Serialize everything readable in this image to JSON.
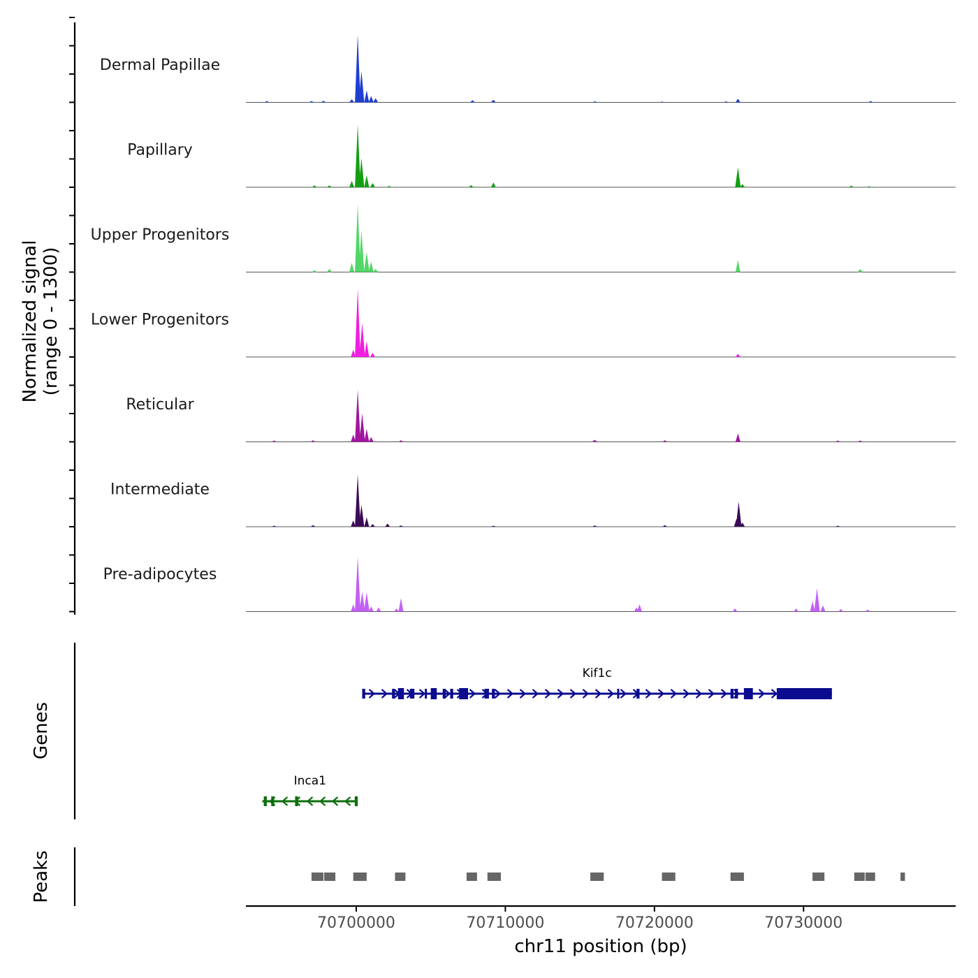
{
  "chart_data": {
    "type": "area",
    "title": "",
    "ylabel": "Normalized signal",
    "ylabel_range": "(range 0 - 1300)",
    "yrange": [
      0,
      1300
    ],
    "xlabel": "chr11 position (bp)",
    "xlim": [
      70692600,
      70740200
    ],
    "xticks": [
      {
        "value": 70700000,
        "label": "70700000"
      },
      {
        "value": 70710000,
        "label": "70710000"
      },
      {
        "value": 70720000,
        "label": "70720000"
      },
      {
        "value": 70730000,
        "label": "70730000"
      }
    ],
    "tracks": [
      {
        "name": "Dermal Papillae",
        "color": "#1f3fd1",
        "peaks": [
          [
            70694000,
            25
          ],
          [
            70697000,
            25
          ],
          [
            70697800,
            30
          ],
          [
            70699700,
            60
          ],
          [
            70700100,
            1300
          ],
          [
            70700350,
            600
          ],
          [
            70700700,
            230
          ],
          [
            70701000,
            120
          ],
          [
            70701300,
            80
          ],
          [
            70707800,
            40
          ],
          [
            70709200,
            50
          ],
          [
            70716000,
            20
          ],
          [
            70720500,
            15
          ],
          [
            70724800,
            20
          ],
          [
            70725600,
            70
          ],
          [
            70734500,
            25
          ]
        ]
      },
      {
        "name": "Papillary",
        "color": "#149e14",
        "peaks": [
          [
            70697200,
            35
          ],
          [
            70698200,
            35
          ],
          [
            70699700,
            120
          ],
          [
            70700100,
            1200
          ],
          [
            70700350,
            560
          ],
          [
            70700700,
            230
          ],
          [
            70701100,
            80
          ],
          [
            70702200,
            25
          ],
          [
            70707700,
            40
          ],
          [
            70709200,
            90
          ],
          [
            70725600,
            380
          ],
          [
            70725900,
            60
          ],
          [
            70733200,
            30
          ],
          [
            70734400,
            20
          ]
        ]
      },
      {
        "name": "Upper Progenitors",
        "color": "#52d667",
        "peaks": [
          [
            70697200,
            35
          ],
          [
            70698200,
            60
          ],
          [
            70699700,
            180
          ],
          [
            70700100,
            1300
          ],
          [
            70700350,
            800
          ],
          [
            70700700,
            380
          ],
          [
            70701000,
            200
          ],
          [
            70701300,
            60
          ],
          [
            70725600,
            230
          ],
          [
            70733800,
            60
          ]
        ]
      },
      {
        "name": "Lower Progenitors",
        "color": "#f01ee0",
        "peaks": [
          [
            70699800,
            140
          ],
          [
            70700100,
            1300
          ],
          [
            70700400,
            650
          ],
          [
            70700700,
            300
          ],
          [
            70701100,
            80
          ],
          [
            70725600,
            60
          ]
        ]
      },
      {
        "name": "Reticular",
        "color": "#a0169e",
        "peaks": [
          [
            70694500,
            25
          ],
          [
            70697100,
            30
          ],
          [
            70699800,
            140
          ],
          [
            70700100,
            1000
          ],
          [
            70700400,
            550
          ],
          [
            70700700,
            250
          ],
          [
            70701000,
            90
          ],
          [
            70703000,
            30
          ],
          [
            70716000,
            40
          ],
          [
            70720700,
            30
          ],
          [
            70725600,
            160
          ],
          [
            70732300,
            25
          ],
          [
            70733800,
            25
          ]
        ]
      },
      {
        "name": "Intermediate",
        "color": "#3b0a57",
        "peaks": [
          [
            70694500,
            20
          ],
          [
            70697100,
            30
          ],
          [
            70699800,
            120
          ],
          [
            70700100,
            1000
          ],
          [
            70700350,
            420
          ],
          [
            70700700,
            180
          ],
          [
            70701100,
            50
          ],
          [
            70702100,
            60
          ],
          [
            70703000,
            25
          ],
          [
            70709200,
            20
          ],
          [
            70716000,
            25
          ],
          [
            70720700,
            30
          ],
          [
            70725500,
            150
          ],
          [
            70725650,
            480
          ],
          [
            70725900,
            80
          ],
          [
            70732300,
            20
          ]
        ]
      },
      {
        "name": "Pre-adipocytes",
        "color": "#c35ff5",
        "peaks": [
          [
            70699800,
            140
          ],
          [
            70700100,
            1050
          ],
          [
            70700400,
            380
          ],
          [
            70700700,
            370
          ],
          [
            70701000,
            100
          ],
          [
            70701500,
            80
          ],
          [
            70702700,
            60
          ],
          [
            70703000,
            260
          ],
          [
            70718800,
            80
          ],
          [
            70719000,
            140
          ],
          [
            70725400,
            60
          ],
          [
            70729500,
            60
          ],
          [
            70730600,
            200
          ],
          [
            70730900,
            450
          ],
          [
            70731300,
            120
          ],
          [
            70732500,
            50
          ],
          [
            70734300,
            40
          ]
        ]
      }
    ],
    "genes": [
      {
        "name": "Kif1c",
        "strand": "+",
        "color": "#0c0c8f",
        "start": 70700400,
        "end": 70731900,
        "exons": [
          [
            70700400,
            70700600
          ],
          [
            70702400,
            70702600
          ],
          [
            70702800,
            70703200
          ],
          [
            70703600,
            70703900
          ],
          [
            70704600,
            70704700
          ],
          [
            70705000,
            70705400
          ],
          [
            70705800,
            70706000
          ],
          [
            70706300,
            70706500
          ],
          [
            70706900,
            70707500
          ],
          [
            70708600,
            70708900
          ],
          [
            70709100,
            70709300
          ],
          [
            70717500,
            70717600
          ],
          [
            70718800,
            70719000
          ],
          [
            70725100,
            70725300
          ],
          [
            70725400,
            70725600
          ],
          [
            70726000,
            70726600
          ],
          [
            70728200,
            70731900
          ]
        ]
      },
      {
        "name": "Inca1",
        "strand": "-",
        "color": "#0f6e0f",
        "start": 70693700,
        "end": 70700100,
        "exons": [
          [
            70693800,
            70694000
          ],
          [
            70694300,
            70694500
          ],
          [
            70695900,
            70696100
          ],
          [
            70699900,
            70700100
          ]
        ]
      }
    ],
    "peak_regions": {
      "label": "Peaks",
      "color": "#666666",
      "regions": [
        [
          70697000,
          70697800
        ],
        [
          70697850,
          70698600
        ],
        [
          70699800,
          70700700
        ],
        [
          70702600,
          70703300
        ],
        [
          70707400,
          70708100
        ],
        [
          70708800,
          70709700
        ],
        [
          70715700,
          70716600
        ],
        [
          70720500,
          70721400
        ],
        [
          70725100,
          70726000
        ],
        [
          70730600,
          70731400
        ],
        [
          70733400,
          70734100
        ],
        [
          70734150,
          70734800
        ],
        [
          70736500,
          70736800
        ]
      ]
    },
    "panel_labels": {
      "genes": "Genes",
      "peaks": "Peaks"
    }
  }
}
